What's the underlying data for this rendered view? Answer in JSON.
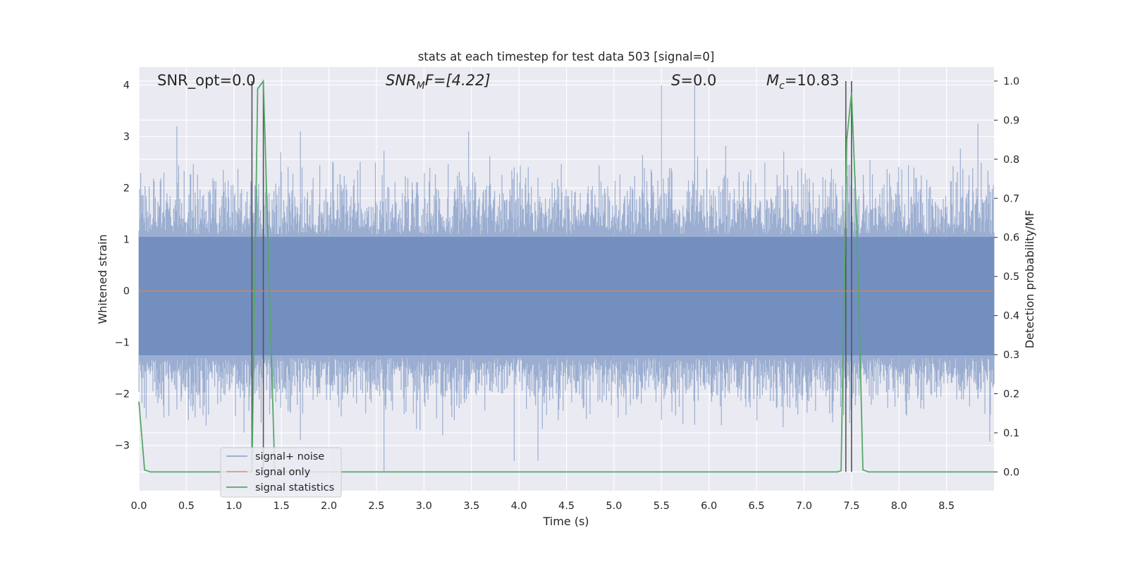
{
  "chart_data": {
    "type": "line",
    "title": "stats at each timestep for test data 503 [signal=0]",
    "xlabel": "Time (s)",
    "ylabel_left": "Whitened strain",
    "ylabel_right": "Detection probability/MF",
    "xlim": [
      0.0,
      9.0
    ],
    "ylim_left": [
      -3.88,
      4.35
    ],
    "ylim_right": [
      -0.048,
      1.036
    ],
    "x_ticks": [
      "0.0",
      "0.5",
      "1.0",
      "1.5",
      "2.0",
      "2.5",
      "3.0",
      "3.5",
      "4.0",
      "4.5",
      "5.0",
      "5.5",
      "6.0",
      "6.5",
      "7.0",
      "7.5",
      "8.0",
      "8.5"
    ],
    "y_left_ticks": [
      "4",
      "3",
      "2",
      "1",
      "0",
      "−1",
      "−2",
      "−3"
    ],
    "y_right_ticks": [
      "1.0",
      "0.9",
      "0.8",
      "0.7",
      "0.6",
      "0.5",
      "0.4",
      "0.3",
      "0.2",
      "0.1",
      "0.0"
    ],
    "grid": true,
    "legend_position": "lower-left",
    "annotations": {
      "snr_opt": "SNR_opt=0.0",
      "snr_mf_main": "SNR",
      "snr_mf_sub": "M",
      "snr_mf_tail": "F=[4.22]",
      "s_var": "S",
      "s_tail": "=0.0",
      "mc_main": "M",
      "mc_sub": "c",
      "mc_tail": "=10.83"
    },
    "series": [
      {
        "name": "signal+ noise",
        "color": "#4c72b0",
        "axis": "left",
        "description_values": {
          "typical_range": [
            -1.3,
            1.1
          ],
          "peak_max": 4.0,
          "peak_min": -3.5
        }
      },
      {
        "name": "signal only",
        "color": "#dd8452",
        "axis": "left",
        "x": [
          0.0,
          9.0
        ],
        "y": [
          0.0,
          0.0
        ]
      },
      {
        "name": "signal statistics",
        "color": "#55a868",
        "axis": "right",
        "x": [
          0.0,
          0.06,
          0.12,
          1.15,
          1.19,
          1.25,
          1.31,
          1.37,
          1.43,
          1.5,
          7.35,
          7.39,
          7.45,
          7.5,
          7.56,
          7.62,
          7.68,
          9.0
        ],
        "y": [
          0.18,
          0.005,
          0.0,
          0.0,
          0.0,
          0.98,
          1.0,
          0.5,
          0.0,
          0.0,
          0.0,
          0.003,
          0.85,
          0.97,
          0.6,
          0.005,
          0.0,
          0.0
        ]
      }
    ],
    "vertical_markers_x": [
      1.19,
      1.31,
      7.44,
      7.5
    ]
  }
}
